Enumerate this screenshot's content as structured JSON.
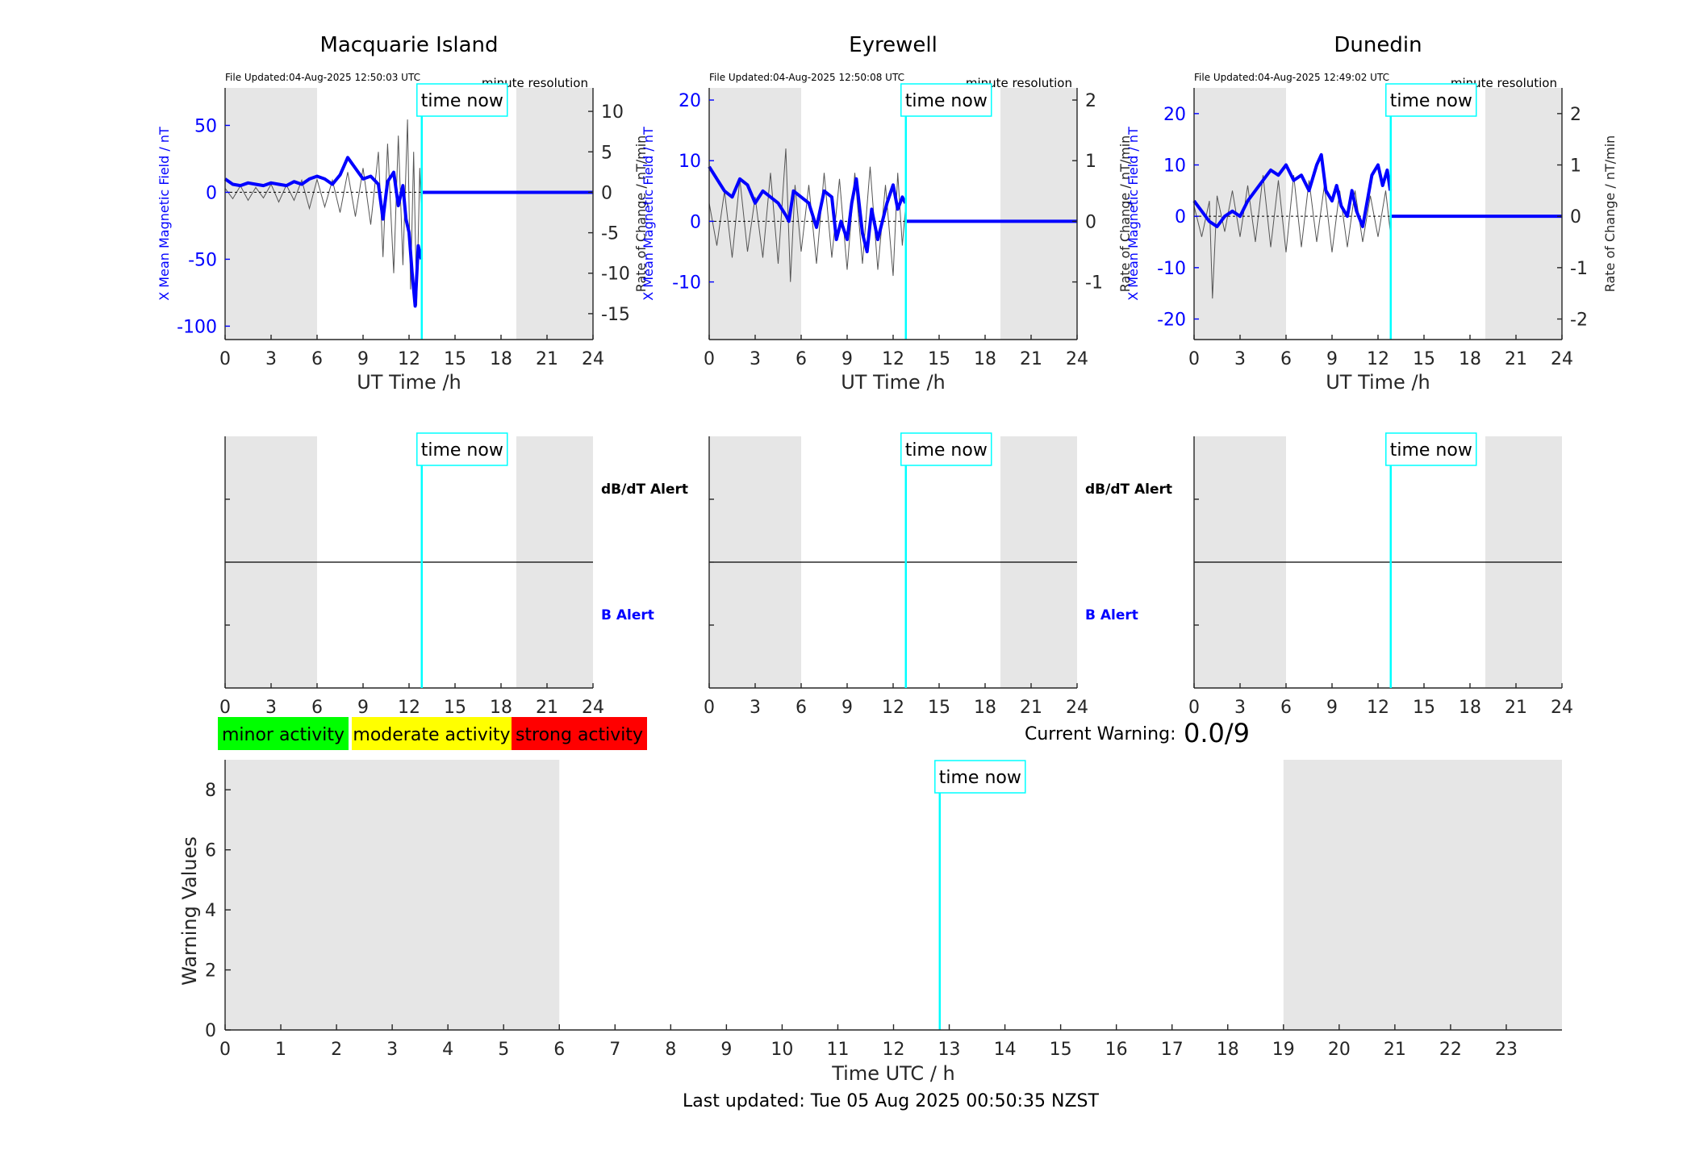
{
  "colors": {
    "field_line": "#0000ff",
    "rate_line": "#555555",
    "time_now": "#00ffff",
    "night_shade": "#e6e6e6",
    "minor": "#00ff00",
    "moderate": "#ffff00",
    "strong": "#ff0000"
  },
  "time_now_label": "time now",
  "stations": [
    {
      "name": "Macquarie Island",
      "file_updated": "File Updated:04-Aug-2025 12:50:03 UTC",
      "resolution": "minute resolution",
      "left_label": "X Mean Magnetic Field / nT",
      "right_label": "Rate of Change / nT/min",
      "xlabel": "UT Time /h",
      "left_ticks": [
        50,
        0,
        -50,
        -100
      ],
      "left_ylim": [
        -110,
        78
      ],
      "right_ticks": [
        10,
        5,
        0,
        -5,
        -10,
        -15
      ],
      "right_ylim": [
        -18.2,
        12.9
      ],
      "night_bands": [
        [
          0,
          6
        ],
        [
          19,
          24
        ]
      ],
      "time_now": 12.83,
      "field_series": [
        [
          0,
          10
        ],
        [
          0.5,
          6
        ],
        [
          1,
          5
        ],
        [
          1.5,
          7
        ],
        [
          2,
          6
        ],
        [
          2.5,
          5
        ],
        [
          3,
          7
        ],
        [
          3.5,
          6
        ],
        [
          4,
          5
        ],
        [
          4.5,
          8
        ],
        [
          5,
          6
        ],
        [
          5.5,
          10
        ],
        [
          6,
          12
        ],
        [
          6.5,
          10
        ],
        [
          7,
          6
        ],
        [
          7.5,
          13
        ],
        [
          8,
          26
        ],
        [
          8.5,
          18
        ],
        [
          9,
          10
        ],
        [
          9.5,
          12
        ],
        [
          10,
          6
        ],
        [
          10.3,
          -20
        ],
        [
          10.6,
          8
        ],
        [
          11,
          15
        ],
        [
          11.3,
          -10
        ],
        [
          11.6,
          5
        ],
        [
          11.8,
          -20
        ],
        [
          12,
          -30
        ],
        [
          12.2,
          -60
        ],
        [
          12.4,
          -85
        ],
        [
          12.6,
          -40
        ],
        [
          12.8,
          -50
        ]
      ],
      "rate_series": [
        [
          0,
          0.5
        ],
        [
          0.5,
          -0.8
        ],
        [
          1,
          0.8
        ],
        [
          1.5,
          -1
        ],
        [
          2,
          0.6
        ],
        [
          2.5,
          -0.7
        ],
        [
          3,
          1
        ],
        [
          3.5,
          -1.2
        ],
        [
          4,
          0.9
        ],
        [
          4.5,
          -1
        ],
        [
          5,
          1.5
        ],
        [
          5.5,
          -2
        ],
        [
          6,
          1.6
        ],
        [
          6.5,
          -1.8
        ],
        [
          7,
          1.5
        ],
        [
          7.5,
          -2.5
        ],
        [
          8,
          2.5
        ],
        [
          8.5,
          -3
        ],
        [
          9,
          3
        ],
        [
          9.5,
          -4
        ],
        [
          10,
          5
        ],
        [
          10.3,
          -8
        ],
        [
          10.6,
          6
        ],
        [
          11,
          -10
        ],
        [
          11.3,
          7
        ],
        [
          11.6,
          -9
        ],
        [
          11.9,
          9
        ],
        [
          12.1,
          -12
        ],
        [
          12.3,
          5
        ],
        [
          12.5,
          -14
        ],
        [
          12.7,
          3
        ],
        [
          12.8,
          -2
        ]
      ]
    },
    {
      "name": "Eyrewell",
      "file_updated": "File Updated:04-Aug-2025 12:50:08 UTC",
      "resolution": "minute resolution",
      "left_label": "X Mean Magnetic Field / nT",
      "right_label": "Rate of Change / nT/min",
      "xlabel": "UT Time /h",
      "left_ticks": [
        20,
        10,
        0,
        -10
      ],
      "left_ylim": [
        -19.5,
        22
      ],
      "right_ticks": [
        2,
        1,
        0,
        -1
      ],
      "right_ylim": [
        -1.95,
        2.2
      ],
      "night_bands": [
        [
          0,
          6
        ],
        [
          19,
          24
        ]
      ],
      "time_now": 12.83,
      "field_series": [
        [
          0,
          9
        ],
        [
          0.5,
          7
        ],
        [
          1,
          5
        ],
        [
          1.5,
          4
        ],
        [
          2,
          7
        ],
        [
          2.5,
          6
        ],
        [
          3,
          3
        ],
        [
          3.5,
          5
        ],
        [
          4,
          4
        ],
        [
          4.5,
          3
        ],
        [
          5,
          1
        ],
        [
          5.2,
          0
        ],
        [
          5.5,
          5
        ],
        [
          6,
          4
        ],
        [
          6.5,
          3
        ],
        [
          7,
          -1
        ],
        [
          7.5,
          5
        ],
        [
          8,
          4
        ],
        [
          8.3,
          -3
        ],
        [
          8.6,
          0
        ],
        [
          9,
          -3
        ],
        [
          9.3,
          3
        ],
        [
          9.6,
          7
        ],
        [
          10,
          -2
        ],
        [
          10.3,
          -5
        ],
        [
          10.6,
          2
        ],
        [
          11,
          -3
        ],
        [
          11.3,
          0
        ],
        [
          11.6,
          3
        ],
        [
          12,
          6
        ],
        [
          12.3,
          2
        ],
        [
          12.6,
          4
        ],
        [
          12.8,
          3
        ]
      ],
      "rate_series": [
        [
          0,
          0.3
        ],
        [
          0.5,
          -0.4
        ],
        [
          1,
          0.5
        ],
        [
          1.5,
          -0.6
        ],
        [
          2,
          0.7
        ],
        [
          2.5,
          -0.5
        ],
        [
          3,
          0.4
        ],
        [
          3.5,
          -0.6
        ],
        [
          4,
          0.8
        ],
        [
          4.5,
          -0.7
        ],
        [
          5,
          1.2
        ],
        [
          5.3,
          -1
        ],
        [
          5.6,
          0.6
        ],
        [
          6,
          -0.5
        ],
        [
          6.5,
          0.6
        ],
        [
          7,
          -0.7
        ],
        [
          7.5,
          0.8
        ],
        [
          8,
          -0.6
        ],
        [
          8.5,
          0.7
        ],
        [
          9,
          -0.8
        ],
        [
          9.5,
          0.8
        ],
        [
          10,
          -0.7
        ],
        [
          10.5,
          0.9
        ],
        [
          11,
          -0.8
        ],
        [
          11.5,
          0.6
        ],
        [
          12,
          -0.9
        ],
        [
          12.3,
          0.8
        ],
        [
          12.6,
          -0.4
        ],
        [
          12.8,
          0.2
        ]
      ]
    },
    {
      "name": "Dunedin",
      "file_updated": "File Updated:04-Aug-2025 12:49:02 UTC",
      "resolution": "minute resolution",
      "left_label": "X Mean Magnetic Field / nT",
      "right_label": "Rate of Change / nT/min",
      "xlabel": "UT Time /h",
      "left_ticks": [
        20,
        10,
        0,
        -10,
        -20
      ],
      "left_ylim": [
        -24,
        25
      ],
      "right_ticks": [
        2,
        1,
        0,
        -1,
        -2
      ],
      "right_ylim": [
        -2.4,
        2.5
      ],
      "night_bands": [
        [
          0,
          6
        ],
        [
          19,
          24
        ]
      ],
      "time_now": 12.83,
      "field_series": [
        [
          0,
          3
        ],
        [
          0.5,
          1
        ],
        [
          1,
          -1
        ],
        [
          1.5,
          -2
        ],
        [
          2,
          0
        ],
        [
          2.5,
          1
        ],
        [
          3,
          0
        ],
        [
          3.5,
          3
        ],
        [
          4,
          5
        ],
        [
          4.5,
          7
        ],
        [
          5,
          9
        ],
        [
          5.5,
          8
        ],
        [
          6,
          10
        ],
        [
          6.5,
          7
        ],
        [
          7,
          8
        ],
        [
          7.5,
          5
        ],
        [
          8,
          10
        ],
        [
          8.3,
          12
        ],
        [
          8.6,
          5
        ],
        [
          9,
          3
        ],
        [
          9.3,
          6
        ],
        [
          9.6,
          2
        ],
        [
          10,
          0
        ],
        [
          10.3,
          5
        ],
        [
          10.6,
          1
        ],
        [
          11,
          -2
        ],
        [
          11.3,
          3
        ],
        [
          11.6,
          8
        ],
        [
          12,
          10
        ],
        [
          12.3,
          6
        ],
        [
          12.6,
          9
        ],
        [
          12.8,
          5
        ]
      ],
      "rate_series": [
        [
          0,
          0.2
        ],
        [
          0.5,
          -0.4
        ],
        [
          1,
          0.3
        ],
        [
          1.2,
          -1.6
        ],
        [
          1.5,
          0.4
        ],
        [
          2,
          -0.3
        ],
        [
          2.5,
          0.5
        ],
        [
          3,
          -0.4
        ],
        [
          3.5,
          0.6
        ],
        [
          4,
          -0.5
        ],
        [
          4.5,
          0.8
        ],
        [
          5,
          -0.6
        ],
        [
          5.5,
          0.7
        ],
        [
          6,
          -0.7
        ],
        [
          6.5,
          0.8
        ],
        [
          7,
          -0.6
        ],
        [
          7.5,
          0.7
        ],
        [
          8,
          -0.5
        ],
        [
          8.5,
          0.6
        ],
        [
          9,
          -0.7
        ],
        [
          9.5,
          0.5
        ],
        [
          10,
          -0.6
        ],
        [
          10.5,
          0.5
        ],
        [
          11,
          -0.5
        ],
        [
          11.5,
          0.4
        ],
        [
          12,
          -0.4
        ],
        [
          12.5,
          0.5
        ],
        [
          12.8,
          -0.3
        ]
      ]
    }
  ],
  "alert_panels": {
    "x_ticks": [
      0,
      3,
      6,
      9,
      12,
      15,
      18,
      21,
      24
    ],
    "dbdt_label": "dB/dT Alert",
    "b_label": "B Alert"
  },
  "legend": {
    "minor": "minor activity",
    "moderate": "moderate activity",
    "strong": "strong activity"
  },
  "current_warning": {
    "label": "Current Warning:",
    "value": "0.0/9"
  },
  "chart_data": {
    "type": "bar",
    "ylabel": "Warning Values",
    "xlabel": "Time UTC / h",
    "xlim": [
      0,
      24
    ],
    "ylim": [
      0,
      9
    ],
    "x_ticks": [
      0,
      1,
      2,
      3,
      4,
      5,
      6,
      7,
      8,
      9,
      10,
      11,
      12,
      13,
      14,
      15,
      16,
      17,
      18,
      19,
      20,
      21,
      22,
      23
    ],
    "y_ticks": [
      0,
      2,
      4,
      6,
      8
    ],
    "night_bands": [
      [
        0,
        6
      ],
      [
        19,
        24
      ]
    ],
    "time_now": 12.83,
    "values": []
  },
  "footer": "Last updated: Tue 05 Aug 2025 00:50:35 NZST"
}
